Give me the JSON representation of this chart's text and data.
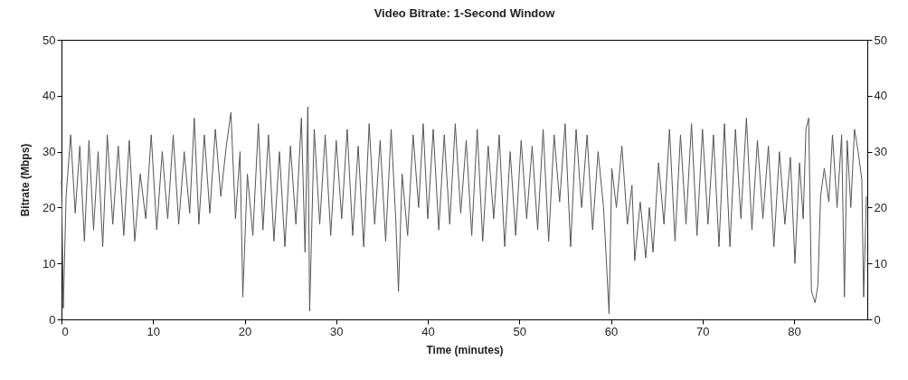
{
  "chart_data": {
    "type": "line",
    "title": "Video Bitrate: 1-Second Window",
    "xlabel": "Time (minutes)",
    "ylabel": "Bitrate (Mbps)",
    "xlim": [
      0,
      88
    ],
    "xticks": [
      0,
      10,
      20,
      30,
      40,
      50,
      60,
      70,
      80
    ],
    "ylim": [
      0,
      50
    ],
    "yticks": [
      0,
      10,
      20,
      30,
      40,
      50
    ],
    "y2lim": [
      0,
      50
    ],
    "y2ticks": [
      0,
      10,
      20,
      30,
      40,
      50
    ],
    "grid": false,
    "marker": "none",
    "line_style": "solid",
    "series": [
      {
        "color": "#555555",
        "x": [
          0,
          0.2,
          0.5,
          1.0,
          1.5,
          2.0,
          2.5,
          3.0,
          3.5,
          4.0,
          4.5,
          5.0,
          5.6,
          6.2,
          6.8,
          7.4,
          8.0,
          8.6,
          9.2,
          9.8,
          10.4,
          11.0,
          11.6,
          12.2,
          12.8,
          13.4,
          14.0,
          14.5,
          15.0,
          15.6,
          16.2,
          16.8,
          17.4,
          18.0,
          18.5,
          19.0,
          19.5,
          19.8,
          20.3,
          20.9,
          21.5,
          22.0,
          22.6,
          23.2,
          23.8,
          24.4,
          25.0,
          25.6,
          26.2,
          26.6,
          26.9,
          27.1,
          27.6,
          28.2,
          28.8,
          29.4,
          30.0,
          30.6,
          31.2,
          31.8,
          32.4,
          33.0,
          33.6,
          34.2,
          34.8,
          35.4,
          36.0,
          36.5,
          36.8,
          37.2,
          37.8,
          38.4,
          39.0,
          39.5,
          40.0,
          40.6,
          41.2,
          41.8,
          42.4,
          43.0,
          43.6,
          44.2,
          44.8,
          45.4,
          46.0,
          46.6,
          47.2,
          47.8,
          48.4,
          49.0,
          49.6,
          50.2,
          50.8,
          51.4,
          52.0,
          52.6,
          53.2,
          53.8,
          54.4,
          55.0,
          55.6,
          56.2,
          56.8,
          57.4,
          58.0,
          58.6,
          59.2,
          59.8,
          60.1,
          60.6,
          61.2,
          61.8,
          62.3,
          62.6,
          63.2,
          63.8,
          64.2,
          64.6,
          65.2,
          65.8,
          66.4,
          67.0,
          67.6,
          68.2,
          68.8,
          69.4,
          70.0,
          70.6,
          71.2,
          71.8,
          72.4,
          73.0,
          73.6,
          74.2,
          74.8,
          75.4,
          76.0,
          76.6,
          77.2,
          77.8,
          78.4,
          79.0,
          79.6,
          80.1,
          80.6,
          81.0,
          81.3,
          81.6,
          81.9,
          82.3,
          82.6,
          82.9,
          83.3,
          83.8,
          84.2,
          84.7,
          85.2,
          85.5,
          85.8,
          86.2,
          86.6,
          87.0,
          87.4,
          87.6,
          87.9
        ],
        "values": [
          25,
          2,
          22,
          33,
          19,
          31,
          14,
          32,
          16,
          30,
          13,
          33,
          17,
          31,
          15,
          32,
          14,
          26,
          18,
          33,
          16,
          30,
          18,
          33,
          17,
          30,
          19,
          36,
          17,
          33,
          19,
          34,
          22,
          31,
          37,
          18,
          30,
          4,
          26,
          15,
          35,
          16,
          33,
          14,
          30,
          13,
          31,
          17,
          36,
          12,
          38,
          1.5,
          34,
          17,
          33,
          15,
          32,
          18,
          34,
          15,
          31,
          13,
          35,
          17,
          32,
          14,
          34,
          18,
          5,
          26,
          15,
          33,
          20,
          35,
          18,
          34,
          16,
          33,
          17,
          35,
          19,
          32,
          15,
          34,
          14,
          31,
          18,
          33,
          13,
          30,
          15,
          32,
          18,
          31,
          16,
          34,
          14,
          33,
          21,
          35,
          13,
          34,
          20,
          33,
          16,
          30,
          20,
          1,
          27,
          20,
          31,
          17,
          24,
          10.5,
          21,
          11,
          20,
          12,
          28,
          17,
          34,
          14,
          33,
          17,
          35,
          15,
          34,
          17,
          33,
          13,
          35,
          13,
          34,
          18,
          36,
          16,
          32,
          18,
          31,
          13,
          30,
          17,
          29,
          10,
          28,
          18,
          34,
          36,
          5,
          3,
          6,
          22,
          27,
          21,
          33,
          20,
          33,
          4,
          32,
          20,
          34,
          30,
          25,
          4,
          22
        ]
      }
    ]
  }
}
